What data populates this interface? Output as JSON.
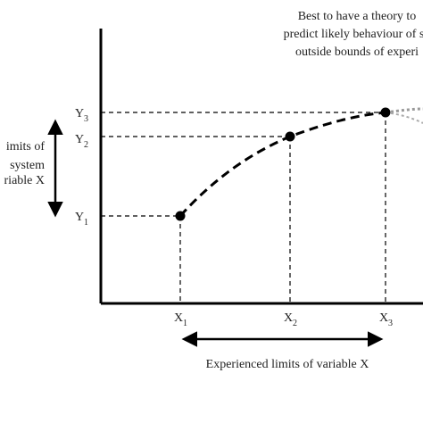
{
  "note_lines": [
    "Best to have a theory to",
    "predict likely behaviour of sy",
    "outside bounds of experi"
  ],
  "left_lines": [
    "imits of",
    "system",
    "riable X"
  ],
  "y_labels": [
    {
      "letter": "Y",
      "sub": "1"
    },
    {
      "letter": "Y",
      "sub": "2"
    },
    {
      "letter": "Y",
      "sub": "3"
    }
  ],
  "x_labels": [
    {
      "letter": "X",
      "sub": "1"
    },
    {
      "letter": "X",
      "sub": "2"
    },
    {
      "letter": "X",
      "sub": "3"
    }
  ],
  "caption": "Experienced limits of variable X"
}
